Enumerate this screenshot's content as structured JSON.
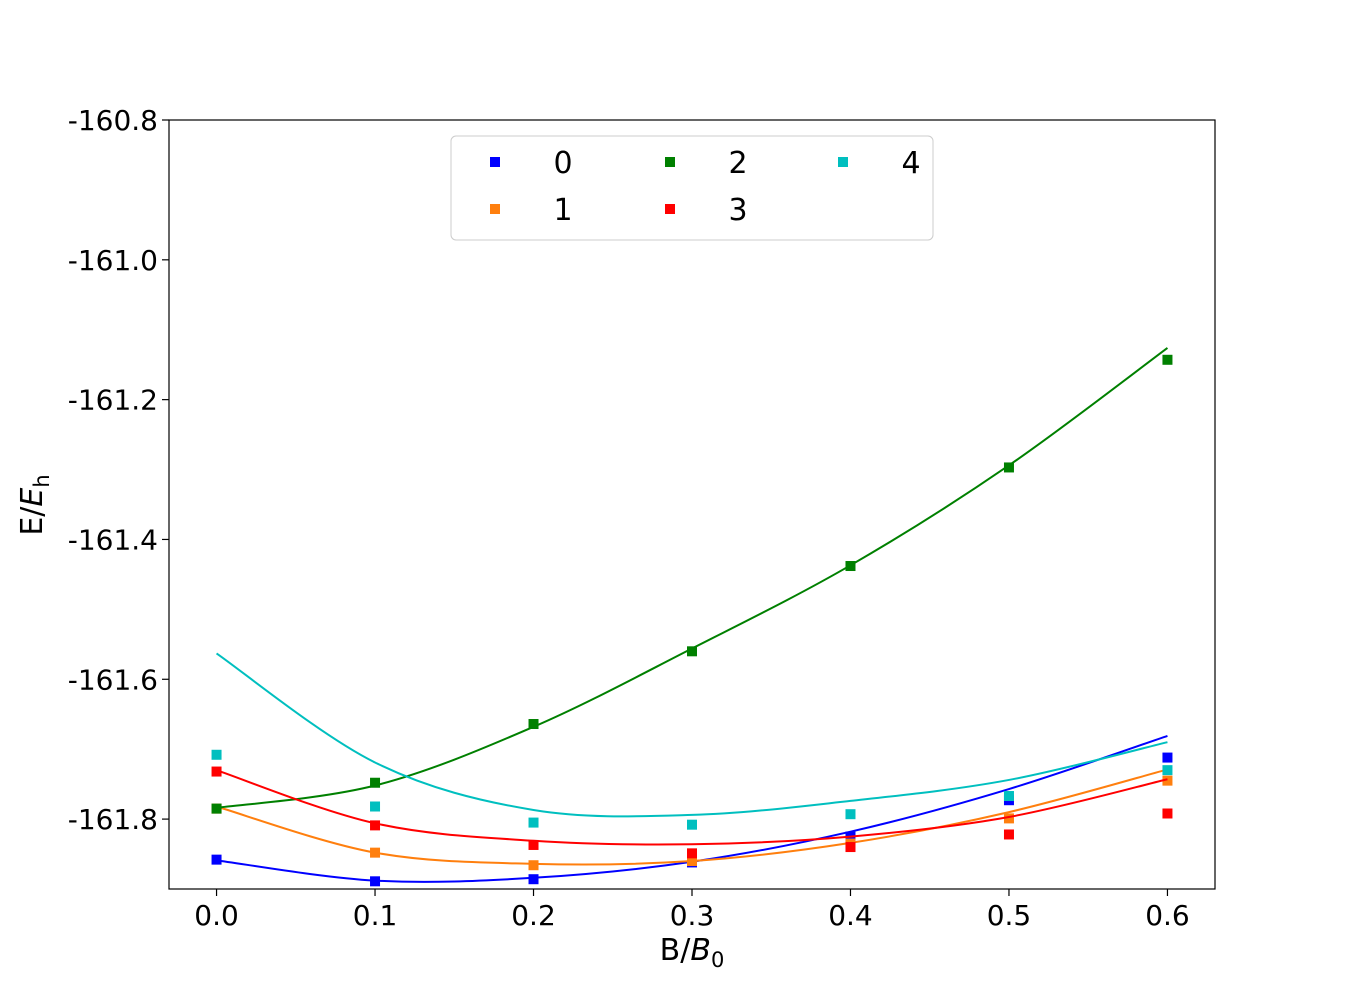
{
  "chart_data": {
    "type": "scatter",
    "xlabel_main": "B/",
    "xlabel_var": "B",
    "xlabel_sub": "0",
    "ylabel_main": "E/",
    "ylabel_var": "E",
    "ylabel_sub": "h",
    "xlim": [
      -0.03,
      0.63
    ],
    "ylim": [
      -161.9,
      -160.8
    ],
    "xticks": [
      0.0,
      0.1,
      0.2,
      0.3,
      0.4,
      0.5,
      0.6
    ],
    "xtick_labels": [
      "0.0",
      "0.1",
      "0.2",
      "0.3",
      "0.4",
      "0.5",
      "0.6"
    ],
    "yticks": [
      -160.8,
      -161.0,
      -161.2,
      -161.4,
      -161.6,
      -161.8
    ],
    "ytick_labels": [
      "-160.8",
      "-161.0",
      "-161.2",
      "-161.4",
      "-161.6",
      "-161.8"
    ],
    "grid": false,
    "legend_position": "top-center",
    "legend_columns": 3,
    "x": [
      0.0,
      0.1,
      0.2,
      0.3,
      0.4,
      0.5,
      0.6
    ],
    "series": [
      {
        "name": "0",
        "color": "#0000ff",
        "points": [
          -161.858,
          -161.889,
          -161.886,
          -161.862,
          -161.825,
          -161.773,
          -161.712
        ],
        "fit": [
          -161.859,
          -161.888,
          -161.884,
          -161.861,
          -161.818,
          -161.757,
          -161.681
        ]
      },
      {
        "name": "1",
        "color": "#ff7f0e",
        "points": [
          -161.785,
          -161.848,
          -161.866,
          -161.86,
          -161.835,
          -161.799,
          -161.745
        ],
        "fit": [
          -161.782,
          -161.848,
          -161.864,
          -161.86,
          -161.834,
          -161.79,
          -161.729
        ]
      },
      {
        "name": "2",
        "color": "#008000",
        "points": [
          -161.785,
          -161.748,
          -161.664,
          -161.56,
          -161.438,
          -161.297,
          -161.143
        ],
        "fit": [
          -161.784,
          -161.752,
          -161.668,
          -161.556,
          -161.437,
          -161.294,
          -161.126
        ]
      },
      {
        "name": "3",
        "color": "#ff0000",
        "points": [
          -161.732,
          -161.809,
          -161.837,
          -161.849,
          -161.84,
          -161.822,
          -161.792
        ],
        "fit": [
          -161.73,
          -161.806,
          -161.831,
          -161.836,
          -161.825,
          -161.797,
          -161.743
        ]
      },
      {
        "name": "4",
        "color": "#00bfbf",
        "points": [
          -161.708,
          -161.782,
          -161.805,
          -161.808,
          -161.793,
          -161.767,
          -161.73
        ],
        "fit": [
          -161.563,
          -161.719,
          -161.787,
          -161.794,
          -161.774,
          -161.744,
          -161.69
        ]
      }
    ]
  }
}
